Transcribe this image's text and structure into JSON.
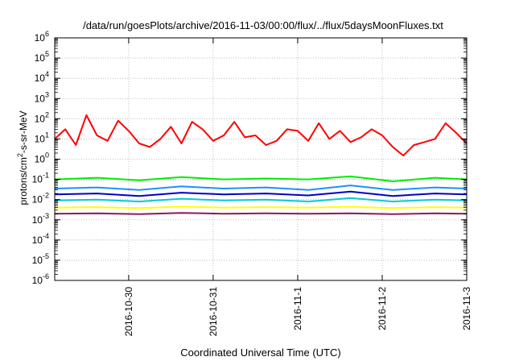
{
  "chart_data": {
    "type": "line",
    "title": "/data/run/goesPlots/archive/2016-11-03/00:00/flux/../flux/5daysMoonFluxes.txt",
    "xlabel": "Coordinated Universal Time (UTC)",
    "ylabel": "protons/cm²-s-sr-MeV",
    "ylabel_parts": [
      "protons/cm",
      "2",
      "-s-sr-MeV"
    ],
    "yscale": "log",
    "ylim": [
      "1e-6",
      "1e6"
    ],
    "ytick_exponents": [
      "-6",
      "-5",
      "-4",
      "-3",
      "-2",
      "-1",
      "0",
      "1",
      "2",
      "3",
      "4",
      "5",
      "6"
    ],
    "ytick_base": "10",
    "xlim": [
      "2016-10-29T03:00",
      "2016-11-03T00:00"
    ],
    "xticks": [
      "2016-10-30",
      "2016-10-31",
      "2016-11-1",
      "2016-11-2",
      "2016-11-3"
    ],
    "xtick_dates": [
      "2016-10-30T00:00",
      "2016-10-31T00:00",
      "2016-11-01T00:00",
      "2016-11-02T00:00",
      "2016-11-03T00:00"
    ],
    "grid": true,
    "legend": "none",
    "series": [
      {
        "color": "#ff0000",
        "x": [
          "2016-10-29T03:00",
          "2016-10-29T06:00",
          "2016-10-29T09:00",
          "2016-10-29T12:00",
          "2016-10-29T15:00",
          "2016-10-29T18:00",
          "2016-10-29T21:00",
          "2016-10-30T00:00",
          "2016-10-30T03:00",
          "2016-10-30T06:00",
          "2016-10-30T09:00",
          "2016-10-30T12:00",
          "2016-10-30T15:00",
          "2016-10-30T18:00",
          "2016-10-30T21:00",
          "2016-10-31T00:00",
          "2016-10-31T03:00",
          "2016-10-31T06:00",
          "2016-10-31T09:00",
          "2016-10-31T12:00",
          "2016-10-31T15:00",
          "2016-10-31T18:00",
          "2016-10-31T21:00",
          "2016-11-01T00:00",
          "2016-11-01T03:00",
          "2016-11-01T06:00",
          "2016-11-01T09:00",
          "2016-11-01T12:00",
          "2016-11-01T15:00",
          "2016-11-01T18:00",
          "2016-11-01T21:00",
          "2016-11-02T00:00",
          "2016-11-02T03:00",
          "2016-11-02T06:00",
          "2016-11-02T09:00",
          "2016-11-02T12:00",
          "2016-11-02T15:00",
          "2016-11-02T18:00",
          "2016-11-02T21:00",
          "2016-11-03T00:00"
        ],
        "y": [
          10,
          30,
          5,
          150,
          15,
          8,
          80,
          25,
          6,
          4,
          10,
          40,
          6,
          70,
          30,
          8,
          15,
          70,
          12,
          15,
          5,
          8,
          30,
          25,
          8,
          60,
          10,
          25,
          7,
          12,
          30,
          15,
          4,
          1.5,
          5,
          7,
          10,
          60,
          20,
          6
        ]
      },
      {
        "color": "#00ee00",
        "x": [
          "2016-10-29T03:00",
          "2016-10-29T15:00",
          "2016-10-30T03:00",
          "2016-10-30T15:00",
          "2016-10-31T03:00",
          "2016-10-31T15:00",
          "2016-11-01T03:00",
          "2016-11-01T15:00",
          "2016-11-02T03:00",
          "2016-11-02T15:00",
          "2016-11-03T00:00"
        ],
        "y": [
          0.1,
          0.12,
          0.09,
          0.13,
          0.1,
          0.11,
          0.1,
          0.14,
          0.08,
          0.12,
          0.1
        ]
      },
      {
        "color": "#1e90ff",
        "x": [
          "2016-10-29T03:00",
          "2016-10-29T15:00",
          "2016-10-30T03:00",
          "2016-10-30T15:00",
          "2016-10-31T03:00",
          "2016-10-31T15:00",
          "2016-11-01T03:00",
          "2016-11-01T15:00",
          "2016-11-02T03:00",
          "2016-11-02T15:00",
          "2016-11-03T00:00"
        ],
        "y": [
          0.035,
          0.04,
          0.03,
          0.045,
          0.035,
          0.04,
          0.03,
          0.05,
          0.03,
          0.04,
          0.035
        ]
      },
      {
        "color": "#0000cd",
        "x": [
          "2016-10-29T03:00",
          "2016-10-29T15:00",
          "2016-10-30T03:00",
          "2016-10-30T15:00",
          "2016-10-31T03:00",
          "2016-10-31T15:00",
          "2016-11-01T03:00",
          "2016-11-01T15:00",
          "2016-11-02T03:00",
          "2016-11-02T15:00",
          "2016-11-03T00:00"
        ],
        "y": [
          0.018,
          0.02,
          0.015,
          0.022,
          0.018,
          0.02,
          0.016,
          0.025,
          0.015,
          0.02,
          0.018
        ]
      },
      {
        "color": "#00ced1",
        "x": [
          "2016-10-29T03:00",
          "2016-10-29T15:00",
          "2016-10-30T03:00",
          "2016-10-30T15:00",
          "2016-10-31T03:00",
          "2016-10-31T15:00",
          "2016-11-01T03:00",
          "2016-11-01T15:00",
          "2016-11-02T03:00",
          "2016-11-02T15:00",
          "2016-11-03T00:00"
        ],
        "y": [
          0.009,
          0.01,
          0.008,
          0.011,
          0.009,
          0.01,
          0.008,
          0.012,
          0.008,
          0.01,
          0.009
        ]
      },
      {
        "color": "#ffff00",
        "x": [
          "2016-10-29T03:00",
          "2016-10-29T15:00",
          "2016-10-30T03:00",
          "2016-10-30T15:00",
          "2016-10-31T03:00",
          "2016-10-31T15:00",
          "2016-11-01T03:00",
          "2016-11-01T15:00",
          "2016-11-02T03:00",
          "2016-11-02T15:00",
          "2016-11-03T00:00"
        ],
        "y": [
          0.004,
          0.0042,
          0.0038,
          0.0045,
          0.004,
          0.0042,
          0.004,
          0.0044,
          0.0038,
          0.0042,
          0.004
        ]
      },
      {
        "color": "#8b1a5a",
        "x": [
          "2016-10-29T03:00",
          "2016-10-29T15:00",
          "2016-10-30T03:00",
          "2016-10-30T15:00",
          "2016-10-31T03:00",
          "2016-10-31T15:00",
          "2016-11-01T03:00",
          "2016-11-01T15:00",
          "2016-11-02T03:00",
          "2016-11-02T15:00",
          "2016-11-03T00:00"
        ],
        "y": [
          0.002,
          0.0021,
          0.0019,
          0.0022,
          0.002,
          0.0021,
          0.002,
          0.0021,
          0.0019,
          0.0021,
          0.002
        ]
      }
    ]
  }
}
